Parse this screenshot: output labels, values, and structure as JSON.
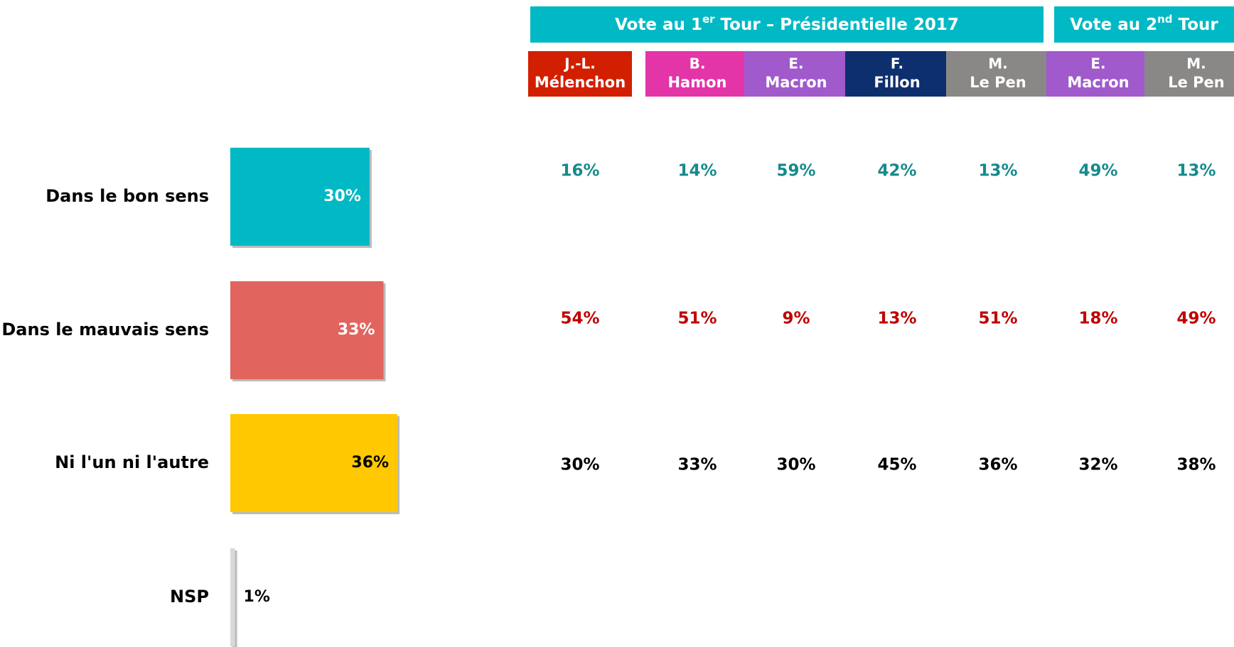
{
  "chart_data": {
    "type": "bar",
    "orientation": "horizontal",
    "categories": [
      "Dans le bon sens",
      "Dans le mauvais sens",
      "Ni l'un ni l'autre",
      "NSP"
    ],
    "values": [
      30,
      33,
      36,
      1
    ],
    "value_labels": [
      "30%",
      "33%",
      "36%",
      "1%"
    ],
    "colors": [
      "#00b9c4",
      "#e2645e",
      "#ffc800",
      "#d9d9d9"
    ],
    "label_colors": [
      "#ffffff",
      "#ffffff",
      "#000000",
      "#000000"
    ]
  },
  "table": {
    "groups": [
      {
        "text": "Vote au 1",
        "sup": "er",
        "rest": " Tour – Présidentielle 2017",
        "span": 5
      },
      {
        "text": "Vote au 2",
        "sup": "nd",
        "rest": " Tour",
        "span": 2
      }
    ],
    "group_color": "#00b9c4",
    "columns": [
      {
        "lines": [
          "J.-L.",
          "Mélenchon"
        ],
        "color": "#d21f00"
      },
      {
        "lines": [
          "B.",
          "Hamon"
        ],
        "color": "#e334a8"
      },
      {
        "lines": [
          "E.",
          "Macron"
        ],
        "color": "#a05acc"
      },
      {
        "lines": [
          "F.",
          "Fillon"
        ],
        "color": "#0e2f6e"
      },
      {
        "lines": [
          "M.",
          "Le Pen"
        ],
        "color": "#8a8886"
      },
      {
        "lines": [
          "E.",
          "Macron"
        ],
        "color": "#a05acc"
      },
      {
        "lines": [
          "M.",
          "Le Pen"
        ],
        "color": "#8a8886"
      }
    ],
    "rows": [
      {
        "color": "#168a8c",
        "cells": [
          "16%",
          "14%",
          "59%",
          "42%",
          "13%",
          "49%",
          "13%"
        ]
      },
      {
        "color": "#c00000",
        "cells": [
          "54%",
          "51%",
          "9%",
          "13%",
          "51%",
          "18%",
          "49%"
        ]
      },
      {
        "color": "#000000",
        "cells": [
          "30%",
          "33%",
          "30%",
          "45%",
          "36%",
          "32%",
          "38%"
        ]
      }
    ]
  }
}
